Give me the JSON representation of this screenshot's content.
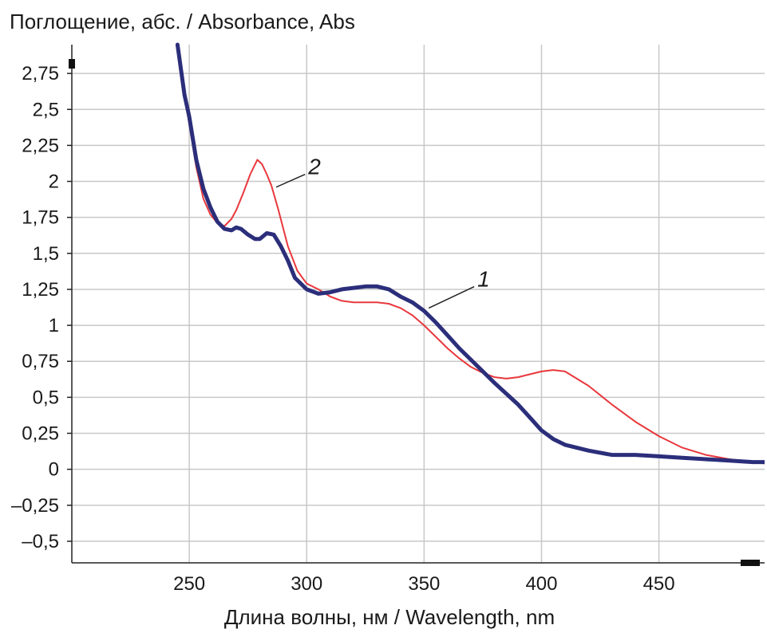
{
  "chart_data": {
    "type": "line",
    "ylabel": "Поглощение, абс. / Absorbance, Abs",
    "xlabel": "Длина волны, нм / Wavelength, nm",
    "xlim": [
      200,
      495
    ],
    "ylim": [
      -0.65,
      2.95
    ],
    "x_ticks": [
      250,
      300,
      350,
      400,
      450
    ],
    "x_tick_labels": [
      "250",
      "300",
      "350",
      "400",
      "450"
    ],
    "y_ticks": [
      2.75,
      2.5,
      2.25,
      2,
      1.75,
      1.5,
      1.25,
      1,
      0.75,
      0.5,
      0.25,
      0,
      -0.25,
      -0.5
    ],
    "y_tick_labels": [
      "2,75",
      "2,5",
      "2,25",
      "2",
      "1,75",
      "1,5",
      "1,25",
      "1",
      "0,75",
      "0,5",
      "0,25",
      "0",
      "–0,25",
      "–0,5"
    ],
    "grid": true,
    "colors": {
      "series1": "#2b2e7a",
      "series2": "#e8383d",
      "grid": "#c8c8c8",
      "axis": "#222222"
    },
    "series": [
      {
        "name": "1",
        "x": [
          245,
          248,
          250,
          253,
          256,
          259,
          262,
          265,
          268,
          270,
          272,
          275,
          278,
          280,
          283,
          286,
          289,
          292,
          295,
          300,
          305,
          310,
          315,
          320,
          325,
          330,
          335,
          340,
          345,
          350,
          355,
          360,
          365,
          370,
          380,
          390,
          395,
          400,
          405,
          410,
          420,
          430,
          440,
          450,
          460,
          470,
          480,
          490,
          495
        ],
        "y": [
          2.95,
          2.6,
          2.45,
          2.15,
          1.95,
          1.82,
          1.72,
          1.67,
          1.66,
          1.68,
          1.67,
          1.63,
          1.6,
          1.6,
          1.64,
          1.63,
          1.55,
          1.45,
          1.33,
          1.25,
          1.22,
          1.23,
          1.25,
          1.26,
          1.27,
          1.27,
          1.25,
          1.2,
          1.16,
          1.1,
          1.02,
          0.93,
          0.84,
          0.76,
          0.6,
          0.45,
          0.36,
          0.27,
          0.21,
          0.17,
          0.13,
          0.1,
          0.1,
          0.09,
          0.08,
          0.07,
          0.06,
          0.05,
          0.05
        ]
      },
      {
        "name": "2",
        "x": [
          245,
          248,
          250,
          253,
          256,
          259,
          262,
          265,
          268,
          270,
          273,
          276,
          279,
          281,
          283,
          285,
          288,
          292,
          296,
          300,
          305,
          310,
          315,
          320,
          330,
          335,
          340,
          345,
          350,
          355,
          360,
          365,
          370,
          375,
          380,
          385,
          390,
          395,
          400,
          405,
          410,
          420,
          430,
          440,
          450,
          460,
          470,
          480,
          490,
          495
        ],
        "y": [
          2.95,
          2.6,
          2.4,
          2.1,
          1.88,
          1.77,
          1.71,
          1.69,
          1.74,
          1.8,
          1.92,
          2.05,
          2.15,
          2.12,
          2.05,
          1.97,
          1.8,
          1.55,
          1.38,
          1.29,
          1.25,
          1.2,
          1.17,
          1.16,
          1.16,
          1.15,
          1.12,
          1.07,
          1.0,
          0.92,
          0.84,
          0.77,
          0.71,
          0.67,
          0.64,
          0.63,
          0.64,
          0.66,
          0.68,
          0.69,
          0.68,
          0.58,
          0.45,
          0.33,
          0.23,
          0.15,
          0.1,
          0.07,
          0.05,
          0.04
        ]
      }
    ],
    "annotations": [
      {
        "text": "1",
        "series": 0,
        "target_x": 352,
        "target_y": 1.12,
        "label_x": 372,
        "label_y": 1.28
      },
      {
        "text": "2",
        "series": 1,
        "target_x": 287,
        "target_y": 1.96,
        "label_x": 300,
        "label_y": 2.06
      }
    ]
  }
}
